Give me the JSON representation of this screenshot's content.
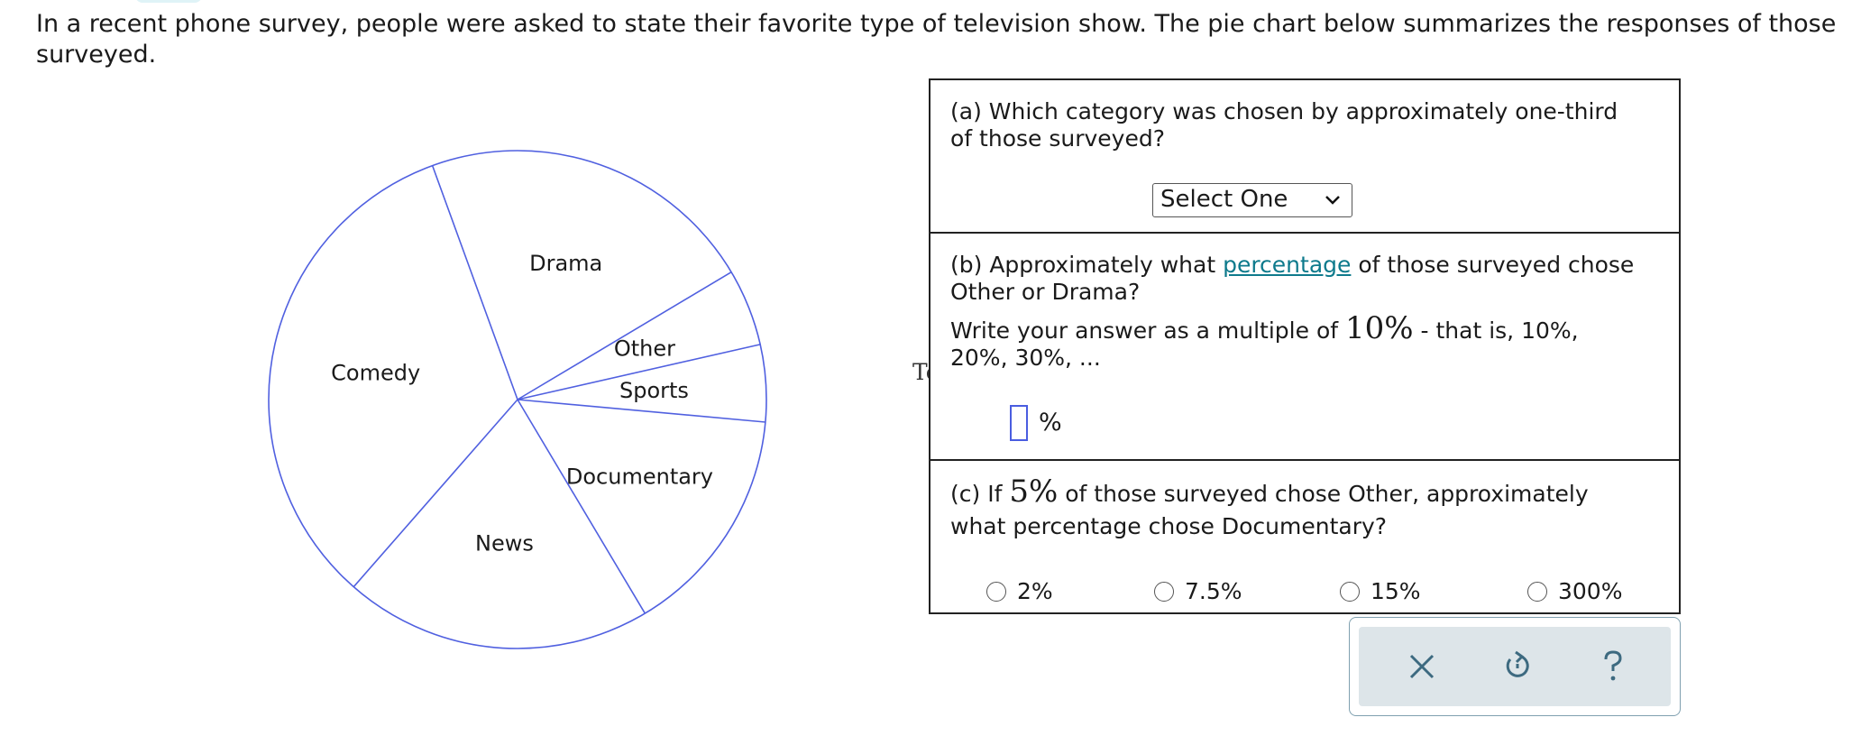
{
  "intro": "In a recent phone survey, people were asked to state their favorite type of television show. The pie chart below summarizes the responses of those surveyed.",
  "chart_data": {
    "type": "pie",
    "labels": [
      "Drama",
      "Other",
      "Sports",
      "Documentary",
      "News",
      "Comedy"
    ],
    "values": [
      22,
      5,
      5,
      15,
      20,
      33
    ],
    "colors": {
      "stroke": "#5060e0",
      "fill": "#ffffff"
    }
  },
  "glitch_text": "Text",
  "question_a": {
    "text": "(a) Which category was chosen by approximately one-third of those surveyed?",
    "select_value": "Select One"
  },
  "question_b": {
    "prefix": "(b) Approximately what ",
    "link": "percentage",
    "suffix": " of those surveyed chose Other or Drama?",
    "line2_prefix": "Write your answer as a multiple of ",
    "line2_math": "10%",
    "line2_suffix": " - that is, 10%, 20%, 30%, ...",
    "unit": "%"
  },
  "question_c": {
    "prefix": "(c) If ",
    "math": "5%",
    "suffix": " of those surveyed chose Other, approximately what percentage chose Documentary?",
    "options": [
      "2%",
      "7.5%",
      "15%",
      "300%"
    ]
  },
  "toolbar": {
    "icons": [
      "close-icon",
      "undo-icon",
      "help-icon"
    ]
  }
}
